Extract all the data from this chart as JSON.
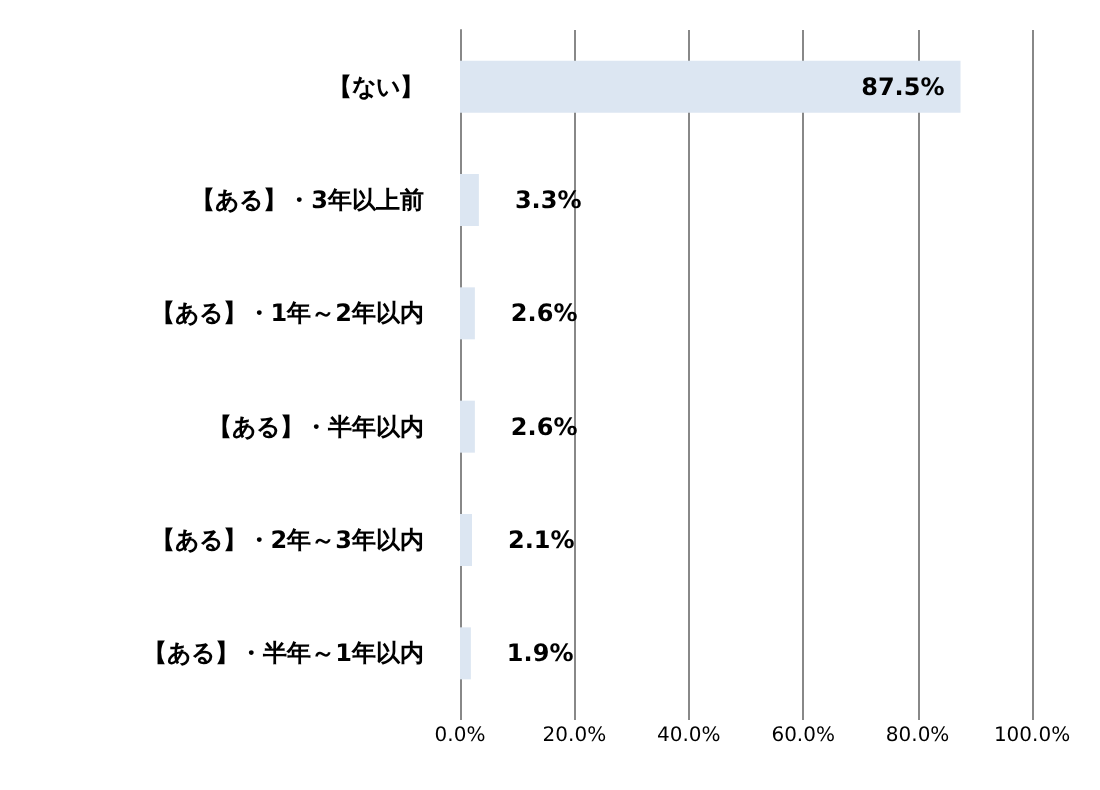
{
  "chart_data": {
    "type": "bar",
    "orientation": "horizontal",
    "categories": [
      "【ない】",
      "【ある】・3年以上前",
      "【ある】・1年～2年以内",
      "【ある】・半年以内",
      "【ある】・2年～3年以内",
      "【ある】・半年～1年以内"
    ],
    "values": [
      87.5,
      3.3,
      2.6,
      2.6,
      2.1,
      1.9
    ],
    "value_labels": [
      "87.5%",
      "3.3%",
      "2.6%",
      "2.6%",
      "2.1%",
      "1.9%"
    ],
    "color": "#dce6f2",
    "xlim": [
      0,
      100
    ],
    "xticks": [
      {
        "value": 0,
        "label": "0.0%"
      },
      {
        "value": 20,
        "label": "20.0%"
      },
      {
        "value": 40,
        "label": "40.0%"
      },
      {
        "value": 60,
        "label": "60.0%"
      },
      {
        "value": 80,
        "label": "80.0%"
      },
      {
        "value": 100,
        "label": "100.0%"
      }
    ],
    "grid": "x"
  }
}
